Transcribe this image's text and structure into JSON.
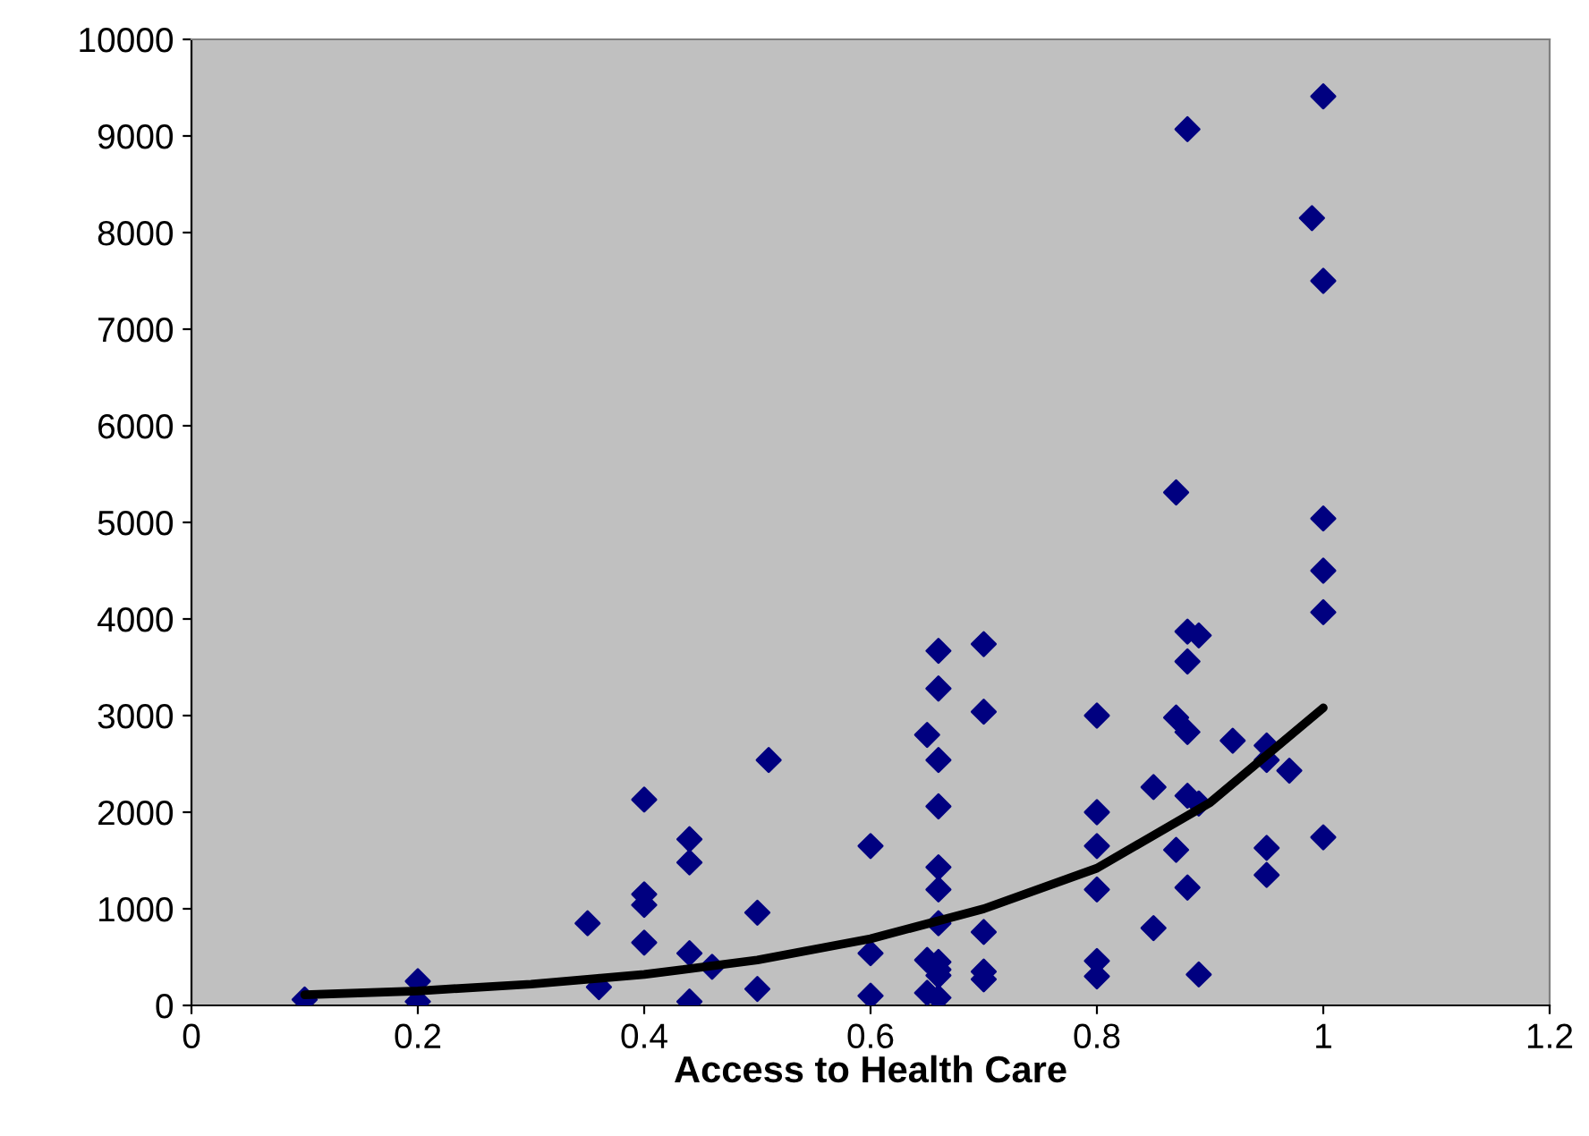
{
  "chart_data": {
    "type": "scatter",
    "xlabel": "Access to Health Care",
    "xlim": [
      0,
      1.2
    ],
    "ylim": [
      0,
      10000
    ],
    "xticks": [
      0,
      0.2,
      0.4,
      0.6,
      0.8,
      1,
      1.2
    ],
    "yticks": [
      0,
      1000,
      2000,
      3000,
      4000,
      5000,
      6000,
      7000,
      8000,
      9000,
      10000
    ],
    "grid": false,
    "legend": false,
    "series": [
      {
        "color": "#000080",
        "marker": "diamond",
        "x": [
          0.1,
          0.2,
          0.2,
          0.35,
          0.36,
          0.4,
          0.4,
          0.4,
          0.4,
          0.44,
          0.44,
          0.44,
          0.44,
          0.46,
          0.5,
          0.5,
          0.51,
          0.6,
          0.6,
          0.6,
          0.65,
          0.66,
          0.66,
          0.66,
          0.66,
          0.66,
          0.66,
          0.66,
          0.65,
          0.66,
          0.65,
          0.66,
          0.66,
          0.66,
          0.7,
          0.7,
          0.7,
          0.7,
          0.7,
          0.8,
          0.8,
          0.8,
          0.8,
          0.8,
          0.8,
          0.85,
          0.85,
          0.87,
          0.87,
          0.87,
          0.88,
          0.88,
          0.88,
          0.88,
          0.88,
          0.88,
          0.89,
          0.89,
          0.89,
          0.92,
          0.95,
          0.95,
          0.95,
          0.95,
          0.97,
          0.99,
          1,
          1,
          1,
          1,
          1,
          1
        ],
        "values": [
          60,
          250,
          40,
          850,
          190,
          2130,
          1150,
          1040,
          650,
          1720,
          1480,
          540,
          40,
          400,
          960,
          170,
          2540,
          1650,
          540,
          100,
          2800,
          3670,
          3280,
          2540,
          2060,
          1430,
          1200,
          850,
          470,
          450,
          130,
          370,
          80,
          310,
          3740,
          3040,
          760,
          350,
          270,
          3000,
          2000,
          1650,
          1200,
          460,
          300,
          2260,
          800,
          5310,
          2980,
          1610,
          9070,
          3870,
          3560,
          2830,
          2170,
          1220,
          3830,
          2090,
          320,
          2740,
          2690,
          2540,
          1630,
          1350,
          2430,
          8150,
          9410,
          7500,
          5040,
          4500,
          4070,
          1740
        ]
      },
      {
        "type": "line",
        "color": "#000000",
        "marker": "none",
        "line_style": "solid",
        "x": [
          0.1,
          0.2,
          0.3,
          0.4,
          0.5,
          0.6,
          0.7,
          0.8,
          0.9,
          1.0
        ],
        "values": [
          110,
          150,
          220,
          320,
          470,
          690,
          1000,
          1420,
          2100,
          3080
        ]
      }
    ]
  }
}
